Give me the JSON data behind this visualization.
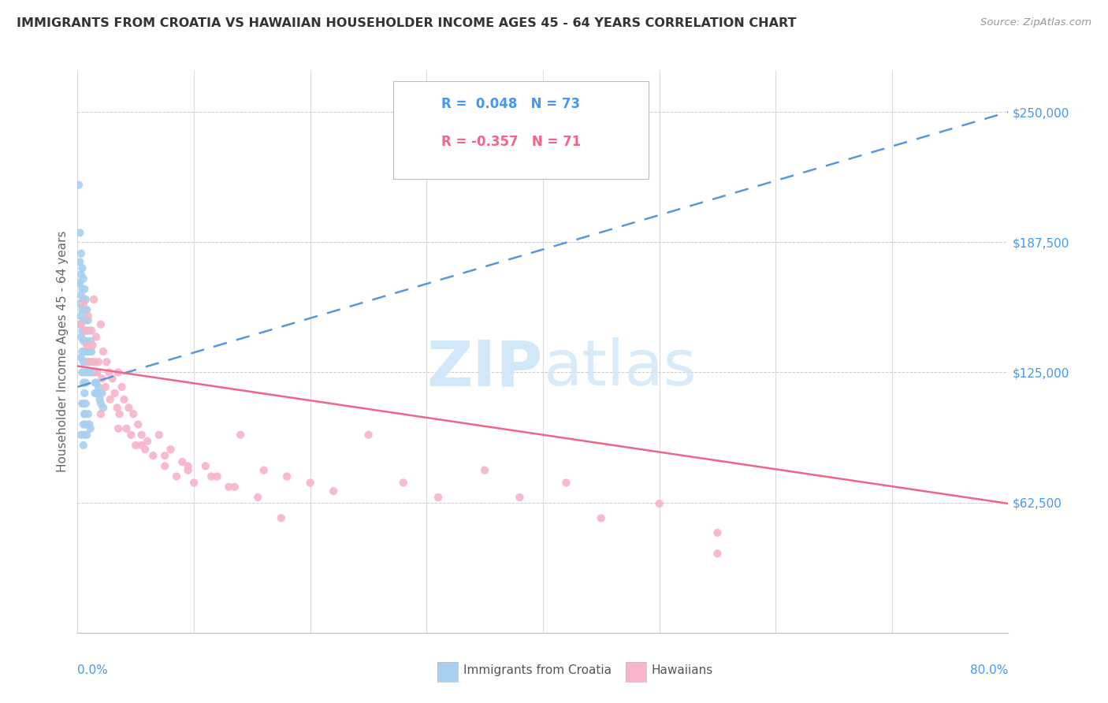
{
  "title": "IMMIGRANTS FROM CROATIA VS HAWAIIAN HOUSEHOLDER INCOME AGES 45 - 64 YEARS CORRELATION CHART",
  "source": "Source: ZipAtlas.com",
  "ylabel": "Householder Income Ages 45 - 64 years",
  "y_ticks": [
    62500,
    125000,
    187500,
    250000
  ],
  "y_tick_labels": [
    "$62,500",
    "$125,000",
    "$187,500",
    "$250,000"
  ],
  "blue_color": "#a8d0f0",
  "pink_color": "#f8b4c8",
  "blue_line_color": "#5599dd",
  "pink_line_color": "#ee6688",
  "watermark_color": "#d0e8f8",
  "tick_label_color": "#4499ee",
  "axis_label_color": "#666666",
  "title_color": "#333333",
  "source_color": "#999999",
  "blue_scatter_x": [
    0.001,
    0.001,
    0.002,
    0.002,
    0.002,
    0.002,
    0.002,
    0.003,
    0.003,
    0.003,
    0.003,
    0.003,
    0.003,
    0.004,
    0.004,
    0.004,
    0.004,
    0.004,
    0.004,
    0.005,
    0.005,
    0.005,
    0.005,
    0.005,
    0.005,
    0.005,
    0.005,
    0.006,
    0.006,
    0.006,
    0.006,
    0.006,
    0.006,
    0.006,
    0.006,
    0.007,
    0.007,
    0.007,
    0.007,
    0.007,
    0.007,
    0.008,
    0.008,
    0.008,
    0.008,
    0.009,
    0.009,
    0.01,
    0.01,
    0.01,
    0.011,
    0.012,
    0.012,
    0.013,
    0.014,
    0.015,
    0.015,
    0.016,
    0.017,
    0.018,
    0.019,
    0.02,
    0.021,
    0.022,
    0.004,
    0.003,
    0.005,
    0.006,
    0.007,
    0.008,
    0.009,
    0.01,
    0.011
  ],
  "blue_scatter_y": [
    215000,
    168000,
    192000,
    178000,
    168000,
    158000,
    148000,
    182000,
    172000,
    162000,
    152000,
    142000,
    132000,
    175000,
    165000,
    155000,
    145000,
    135000,
    125000,
    170000,
    160000,
    150000,
    140000,
    130000,
    120000,
    110000,
    100000,
    165000,
    155000,
    145000,
    135000,
    125000,
    115000,
    105000,
    95000,
    160000,
    150000,
    140000,
    130000,
    120000,
    110000,
    155000,
    145000,
    135000,
    125000,
    150000,
    130000,
    145000,
    135000,
    125000,
    140000,
    135000,
    125000,
    130000,
    125000,
    120000,
    115000,
    120000,
    115000,
    118000,
    112000,
    110000,
    115000,
    108000,
    110000,
    95000,
    90000,
    105000,
    100000,
    95000,
    105000,
    100000,
    98000
  ],
  "pink_scatter_x": [
    0.003,
    0.005,
    0.007,
    0.008,
    0.009,
    0.01,
    0.012,
    0.013,
    0.014,
    0.015,
    0.016,
    0.017,
    0.018,
    0.02,
    0.021,
    0.022,
    0.024,
    0.025,
    0.027,
    0.028,
    0.03,
    0.032,
    0.034,
    0.035,
    0.036,
    0.038,
    0.04,
    0.042,
    0.044,
    0.046,
    0.048,
    0.05,
    0.052,
    0.055,
    0.058,
    0.06,
    0.065,
    0.07,
    0.075,
    0.08,
    0.085,
    0.09,
    0.095,
    0.1,
    0.11,
    0.12,
    0.13,
    0.14,
    0.16,
    0.18,
    0.2,
    0.22,
    0.25,
    0.28,
    0.31,
    0.35,
    0.38,
    0.42,
    0.45,
    0.5,
    0.55,
    0.02,
    0.035,
    0.055,
    0.075,
    0.095,
    0.115,
    0.135,
    0.155,
    0.175,
    0.55
  ],
  "pink_scatter_y": [
    148000,
    158000,
    145000,
    138000,
    152000,
    130000,
    145000,
    138000,
    160000,
    130000,
    142000,
    125000,
    130000,
    148000,
    122000,
    135000,
    118000,
    130000,
    125000,
    112000,
    122000,
    115000,
    108000,
    125000,
    105000,
    118000,
    112000,
    98000,
    108000,
    95000,
    105000,
    90000,
    100000,
    95000,
    88000,
    92000,
    85000,
    95000,
    80000,
    88000,
    75000,
    82000,
    78000,
    72000,
    80000,
    75000,
    70000,
    95000,
    78000,
    75000,
    72000,
    68000,
    95000,
    72000,
    65000,
    78000,
    65000,
    72000,
    55000,
    62000,
    48000,
    105000,
    98000,
    90000,
    85000,
    80000,
    75000,
    70000,
    65000,
    55000,
    38000
  ],
  "blue_line_x": [
    0.0,
    0.8
  ],
  "blue_line_y": [
    118000,
    250000
  ],
  "pink_line_x": [
    0.0,
    0.8
  ],
  "pink_line_y": [
    128000,
    62000
  ],
  "xlim": [
    0.0,
    0.8
  ],
  "ylim": [
    0,
    270000
  ],
  "legend_R1": "R =  0.048",
  "legend_N1": "N = 73",
  "legend_R2": "R = -0.357",
  "legend_N2": "N = 71",
  "bottom_legend1": "Immigrants from Croatia",
  "bottom_legend2": "Hawaiians"
}
